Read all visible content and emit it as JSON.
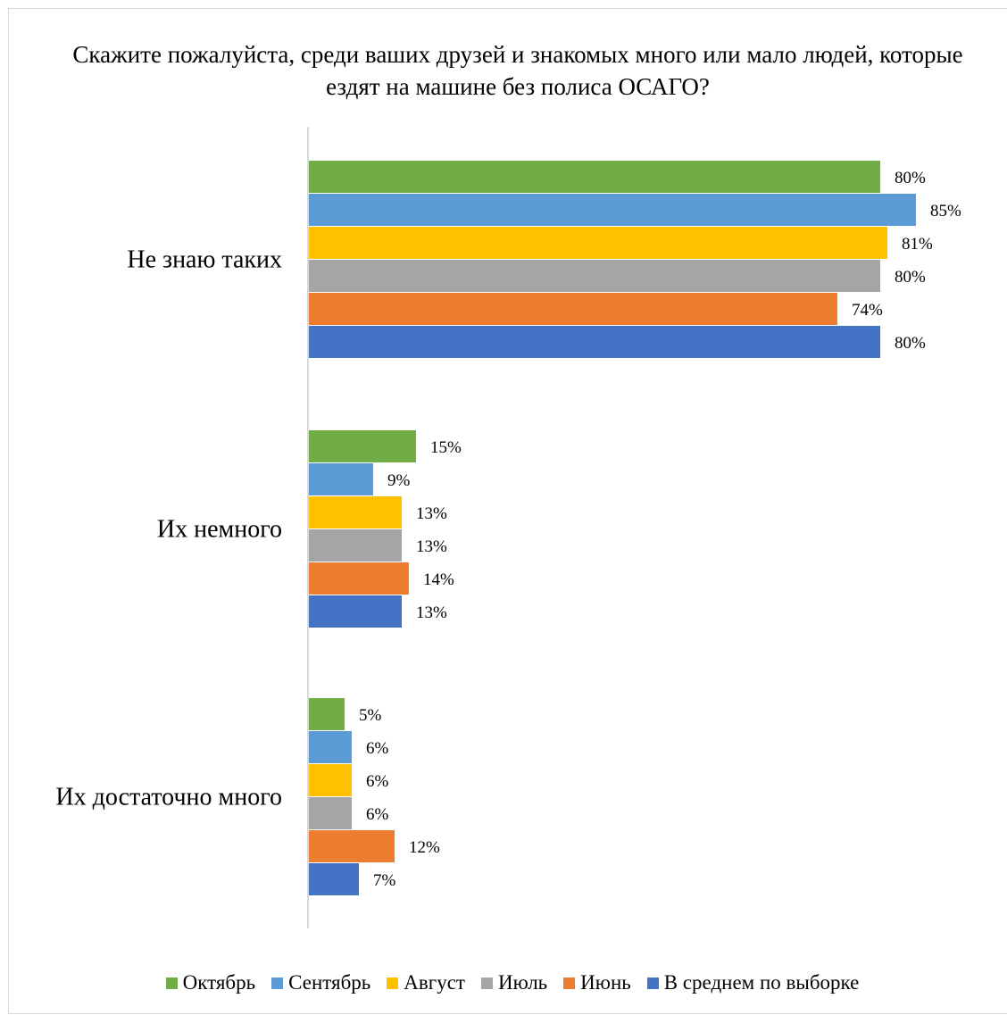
{
  "chart_data": {
    "type": "bar",
    "orientation": "horizontal",
    "title": "Скажите пожалуйста,  среди ваших друзей и знакомых много или мало людей, которые ездят на машине без полиса ОСАГО?",
    "categories": [
      "Не знаю таких",
      "Их немного",
      "Их достаточно много"
    ],
    "series": [
      {
        "name": "Октябрь",
        "color": "#70ad47",
        "values": [
          80,
          15,
          5
        ],
        "labels": [
          "80%",
          "15%",
          "5%"
        ]
      },
      {
        "name": "Сентябрь",
        "color": "#5b9bd5",
        "values": [
          85,
          9,
          6
        ],
        "labels": [
          "85%",
          "9%",
          "6%"
        ]
      },
      {
        "name": "Август",
        "color": "#ffc000",
        "values": [
          81,
          13,
          6
        ],
        "labels": [
          "81%",
          "13%",
          "6%"
        ]
      },
      {
        "name": "Июль",
        "color": "#a5a5a5",
        "values": [
          80,
          13,
          6
        ],
        "labels": [
          "80%",
          "13%",
          "6%"
        ]
      },
      {
        "name": "Июнь",
        "color": "#ed7d31",
        "values": [
          74,
          14,
          12
        ],
        "labels": [
          "74%",
          "14%",
          "12%"
        ]
      },
      {
        "name": "В среднем по выборке",
        "color": "#4472c4",
        "values": [
          80,
          13,
          7
        ],
        "labels": [
          "80%",
          "13%",
          "7%"
        ]
      }
    ],
    "value_unit": "%",
    "xlim": [
      0,
      100
    ],
    "grid": false,
    "legend_position": "bottom",
    "axis_color": "#d9d9d9"
  }
}
